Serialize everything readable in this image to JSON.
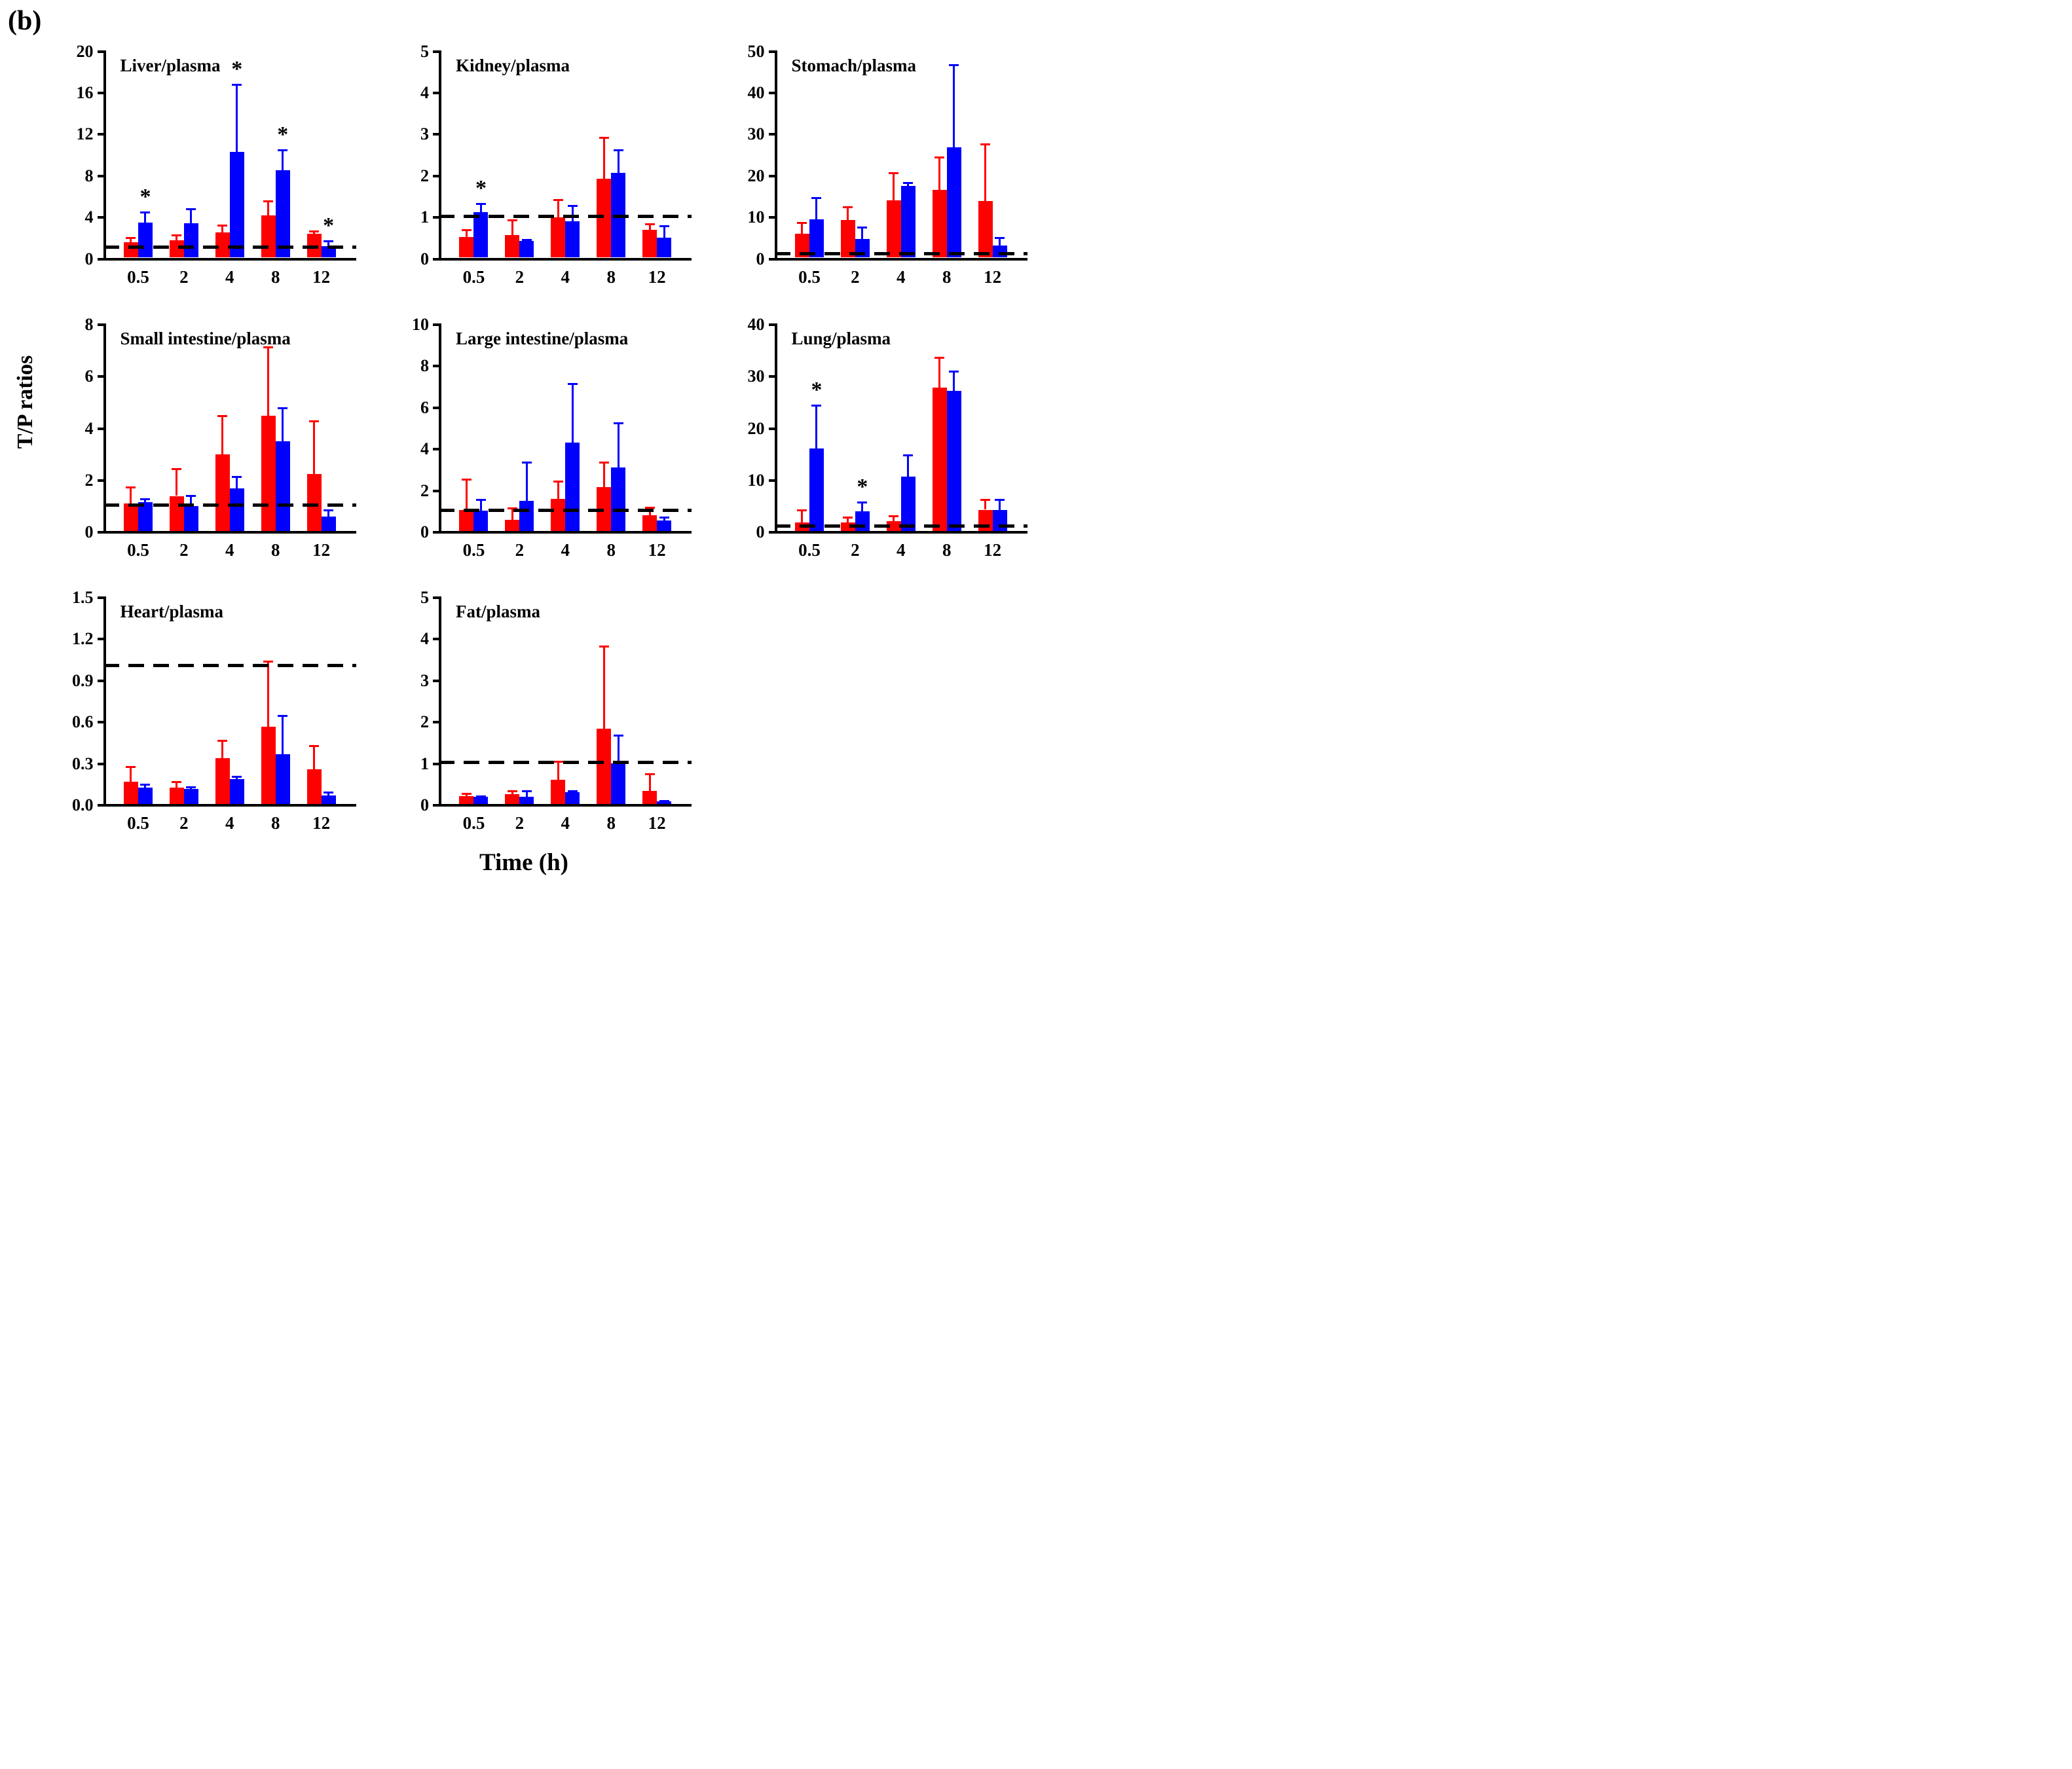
{
  "figure": {
    "panel_label": "(b)",
    "y_axis_label": "T/P ratios",
    "x_axis_label": "Time (h)",
    "significance_marker": "*"
  },
  "colors": {
    "series_red": "#ff0000",
    "series_blue": "#0000ff",
    "axis": "#000000",
    "reference_line": "#000000"
  },
  "chart_data": [
    {
      "type": "bar",
      "title": "Liver/plasma",
      "row": 0,
      "col": 0,
      "ylim": [
        0,
        20
      ],
      "yticks": [
        "0",
        "4",
        "8",
        "12",
        "16",
        "20"
      ],
      "categories": [
        "0.5",
        "2",
        "4",
        "8",
        "12"
      ],
      "reference_line": 1,
      "series": [
        {
          "name": "red",
          "color": "#ff0000",
          "values": [
            1.5,
            1.7,
            2.4,
            4.1,
            2.3
          ],
          "errors": [
            0.45,
            0.45,
            0.75,
            1.35,
            0.25
          ],
          "asterisks": [
            false,
            false,
            false,
            false,
            false
          ]
        },
        {
          "name": "blue",
          "color": "#0000ff",
          "values": [
            3.4,
            3.3,
            10.2,
            8.4,
            1.1
          ],
          "errors": [
            1.0,
            1.4,
            6.5,
            2.0,
            0.5
          ],
          "asterisks": [
            true,
            false,
            true,
            true,
            true
          ]
        }
      ]
    },
    {
      "type": "bar",
      "title": "Kidney/plasma",
      "row": 0,
      "col": 1,
      "ylim": [
        0,
        5
      ],
      "yticks": [
        "0",
        "1",
        "2",
        "3",
        "4",
        "5"
      ],
      "categories": [
        "0.5",
        "2",
        "4",
        "8",
        "12"
      ],
      "reference_line": 1,
      "series": [
        {
          "name": "red",
          "color": "#ff0000",
          "values": [
            0.5,
            0.55,
            0.97,
            1.9,
            0.67
          ],
          "errors": [
            0.17,
            0.35,
            0.42,
            1.0,
            0.15
          ],
          "asterisks": [
            false,
            false,
            false,
            false,
            false
          ]
        },
        {
          "name": "blue",
          "color": "#0000ff",
          "values": [
            1.1,
            0.4,
            0.87,
            2.05,
            0.48
          ],
          "errors": [
            0.2,
            0.04,
            0.38,
            0.55,
            0.28
          ],
          "asterisks": [
            true,
            false,
            false,
            false,
            false
          ]
        }
      ]
    },
    {
      "type": "bar",
      "title": "Stomach/plasma",
      "row": 0,
      "col": 2,
      "ylim": [
        0,
        50
      ],
      "yticks": [
        "0",
        "10",
        "20",
        "30",
        "40",
        "50"
      ],
      "categories": [
        "0.5",
        "2",
        "4",
        "8",
        "12"
      ],
      "reference_line": 1,
      "series": [
        {
          "name": "red",
          "color": "#ff0000",
          "values": [
            5.7,
            9.0,
            13.8,
            16.4,
            13.6
          ],
          "errors": [
            2.8,
            3.3,
            6.7,
            7.8,
            13.8
          ],
          "asterisks": [
            false,
            false,
            false,
            false,
            false
          ]
        },
        {
          "name": "blue",
          "color": "#0000ff",
          "values": [
            9.2,
            4.5,
            17.2,
            26.6,
            2.9
          ],
          "errors": [
            5.3,
            2.8,
            0.9,
            19.8,
            1.9
          ],
          "asterisks": [
            false,
            false,
            false,
            false,
            false
          ]
        }
      ]
    },
    {
      "type": "bar",
      "title": "Small intestine/plasma",
      "row": 1,
      "col": 0,
      "ylim": [
        0,
        8
      ],
      "yticks": [
        "0",
        "2",
        "4",
        "6",
        "8"
      ],
      "categories": [
        "0.5",
        "2",
        "4",
        "8",
        "12"
      ],
      "reference_line": 1,
      "series": [
        {
          "name": "red",
          "color": "#ff0000",
          "values": [
            1.05,
            1.35,
            2.95,
            4.45,
            2.2
          ],
          "errors": [
            0.65,
            1.05,
            1.5,
            2.65,
            2.05
          ],
          "asterisks": [
            false,
            false,
            false,
            false,
            false
          ]
        },
        {
          "name": "blue",
          "color": "#0000ff",
          "values": [
            1.1,
            0.97,
            1.65,
            3.45,
            0.55
          ],
          "errors": [
            0.13,
            0.4,
            0.45,
            1.3,
            0.25
          ],
          "asterisks": [
            false,
            false,
            false,
            false,
            false
          ]
        }
      ]
    },
    {
      "type": "bar",
      "title": "Large intestine/plasma",
      "row": 1,
      "col": 1,
      "ylim": [
        0,
        10
      ],
      "yticks": [
        "0",
        "2",
        "4",
        "6",
        "8",
        "10"
      ],
      "categories": [
        "0.5",
        "2",
        "4",
        "8",
        "12"
      ],
      "reference_line": 1,
      "series": [
        {
          "name": "red",
          "color": "#ff0000",
          "values": [
            1.0,
            0.55,
            1.55,
            2.1,
            0.75
          ],
          "errors": [
            1.5,
            0.55,
            0.85,
            1.2,
            0.4
          ],
          "asterisks": [
            false,
            false,
            false,
            false,
            false
          ]
        },
        {
          "name": "blue",
          "color": "#0000ff",
          "values": [
            0.97,
            1.45,
            4.25,
            3.05,
            0.5
          ],
          "errors": [
            0.55,
            1.85,
            2.85,
            2.15,
            0.17
          ],
          "asterisks": [
            false,
            false,
            false,
            false,
            false
          ]
        }
      ]
    },
    {
      "type": "bar",
      "title": "Lung/plasma",
      "row": 1,
      "col": 2,
      "ylim": [
        0,
        40
      ],
      "yticks": [
        "0",
        "10",
        "20",
        "30",
        "40"
      ],
      "categories": [
        "0.5",
        "2",
        "4",
        "8",
        "12"
      ],
      "reference_line": 1,
      "series": [
        {
          "name": "red",
          "color": "#ff0000",
          "values": [
            1.7,
            1.6,
            1.9,
            27.6,
            4.1
          ],
          "errors": [
            2.3,
            1.0,
            1.0,
            5.8,
            1.9
          ],
          "asterisks": [
            false,
            false,
            false,
            false,
            false
          ]
        },
        {
          "name": "blue",
          "color": "#0000ff",
          "values": [
            15.9,
            3.8,
            10.5,
            27.0,
            4.0
          ],
          "errors": [
            8.3,
            1.7,
            4.2,
            3.8,
            2.1
          ],
          "asterisks": [
            true,
            true,
            false,
            false,
            false
          ]
        }
      ]
    },
    {
      "type": "bar",
      "title": "Heart/plasma",
      "row": 2,
      "col": 0,
      "ylim": [
        0,
        1.5
      ],
      "yticks": [
        "0.0",
        "0.3",
        "0.6",
        "0.9",
        "1.2",
        "1.5"
      ],
      "categories": [
        "0.5",
        "2",
        "4",
        "8",
        "12"
      ],
      "reference_line": 1,
      "series": [
        {
          "name": "red",
          "color": "#ff0000",
          "values": [
            0.16,
            0.12,
            0.33,
            0.56,
            0.25
          ],
          "errors": [
            0.11,
            0.04,
            0.13,
            0.47,
            0.17
          ],
          "asterisks": [
            false,
            false,
            false,
            false,
            false
          ]
        },
        {
          "name": "blue",
          "color": "#0000ff",
          "values": [
            0.12,
            0.11,
            0.18,
            0.36,
            0.06
          ],
          "errors": [
            0.02,
            0.015,
            0.02,
            0.28,
            0.025
          ],
          "asterisks": [
            false,
            false,
            false,
            false,
            false
          ]
        }
      ]
    },
    {
      "type": "bar",
      "title": "Fat/plasma",
      "row": 2,
      "col": 1,
      "ylim": [
        0,
        5
      ],
      "yticks": [
        "0",
        "1",
        "2",
        "3",
        "4",
        "5"
      ],
      "categories": [
        "0.5",
        "2",
        "4",
        "8",
        "12"
      ],
      "reference_line": 1,
      "series": [
        {
          "name": "red",
          "color": "#ff0000",
          "values": [
            0.19,
            0.23,
            0.58,
            1.82,
            0.31
          ],
          "errors": [
            0.06,
            0.08,
            0.45,
            1.98,
            0.41
          ],
          "asterisks": [
            false,
            false,
            false,
            false,
            false
          ]
        },
        {
          "name": "blue",
          "color": "#0000ff",
          "values": [
            0.17,
            0.18,
            0.28,
            0.98,
            0.07
          ],
          "errors": [
            0.02,
            0.14,
            0.03,
            0.68,
            0.01
          ],
          "asterisks": [
            false,
            false,
            false,
            false,
            false
          ]
        }
      ]
    }
  ]
}
